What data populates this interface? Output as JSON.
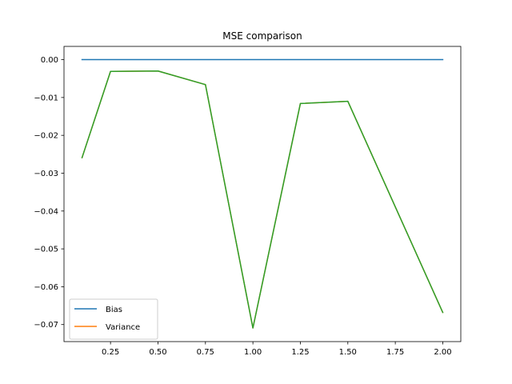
{
  "chart_data": {
    "type": "line",
    "title": "MSE comparison",
    "xlabel": "",
    "ylabel": "",
    "xlim": [
      0.005,
      2.095
    ],
    "ylim": [
      -0.0745,
      0.0035
    ],
    "xticks": [
      0.25,
      0.5,
      0.75,
      1.0,
      1.25,
      1.5,
      1.75,
      2.0
    ],
    "xtick_labels": [
      "0.25",
      "0.50",
      "0.75",
      "1.00",
      "1.25",
      "1.50",
      "1.75",
      "2.00"
    ],
    "yticks": [
      0.0,
      -0.01,
      -0.02,
      -0.03,
      -0.04,
      -0.05,
      -0.06,
      -0.07
    ],
    "ytick_labels": [
      "0.00",
      "−0.01",
      "−0.02",
      "−0.03",
      "−0.04",
      "−0.05",
      "−0.06",
      "−0.07"
    ],
    "x": [
      0.1,
      0.25,
      0.5,
      0.75,
      1.0,
      1.25,
      1.5,
      2.0
    ],
    "series": [
      {
        "name": "Bias",
        "color": "#1f77b4",
        "values": [
          0,
          0,
          0,
          0,
          0,
          0,
          0,
          0
        ],
        "in_legend": true
      },
      {
        "name": "Variance",
        "color": "#ff7f0e",
        "values": [
          -0.0259,
          -0.0031,
          -0.003,
          -0.0066,
          -0.0709,
          -0.0116,
          -0.011,
          -0.0668
        ],
        "in_legend": true
      },
      {
        "name": "",
        "color": "#2ca02c",
        "values": [
          -0.0259,
          -0.0031,
          -0.003,
          -0.0066,
          -0.0709,
          -0.0116,
          -0.011,
          -0.0668
        ],
        "in_legend": false
      }
    ],
    "legend_position": "lower-left",
    "grid": false
  }
}
